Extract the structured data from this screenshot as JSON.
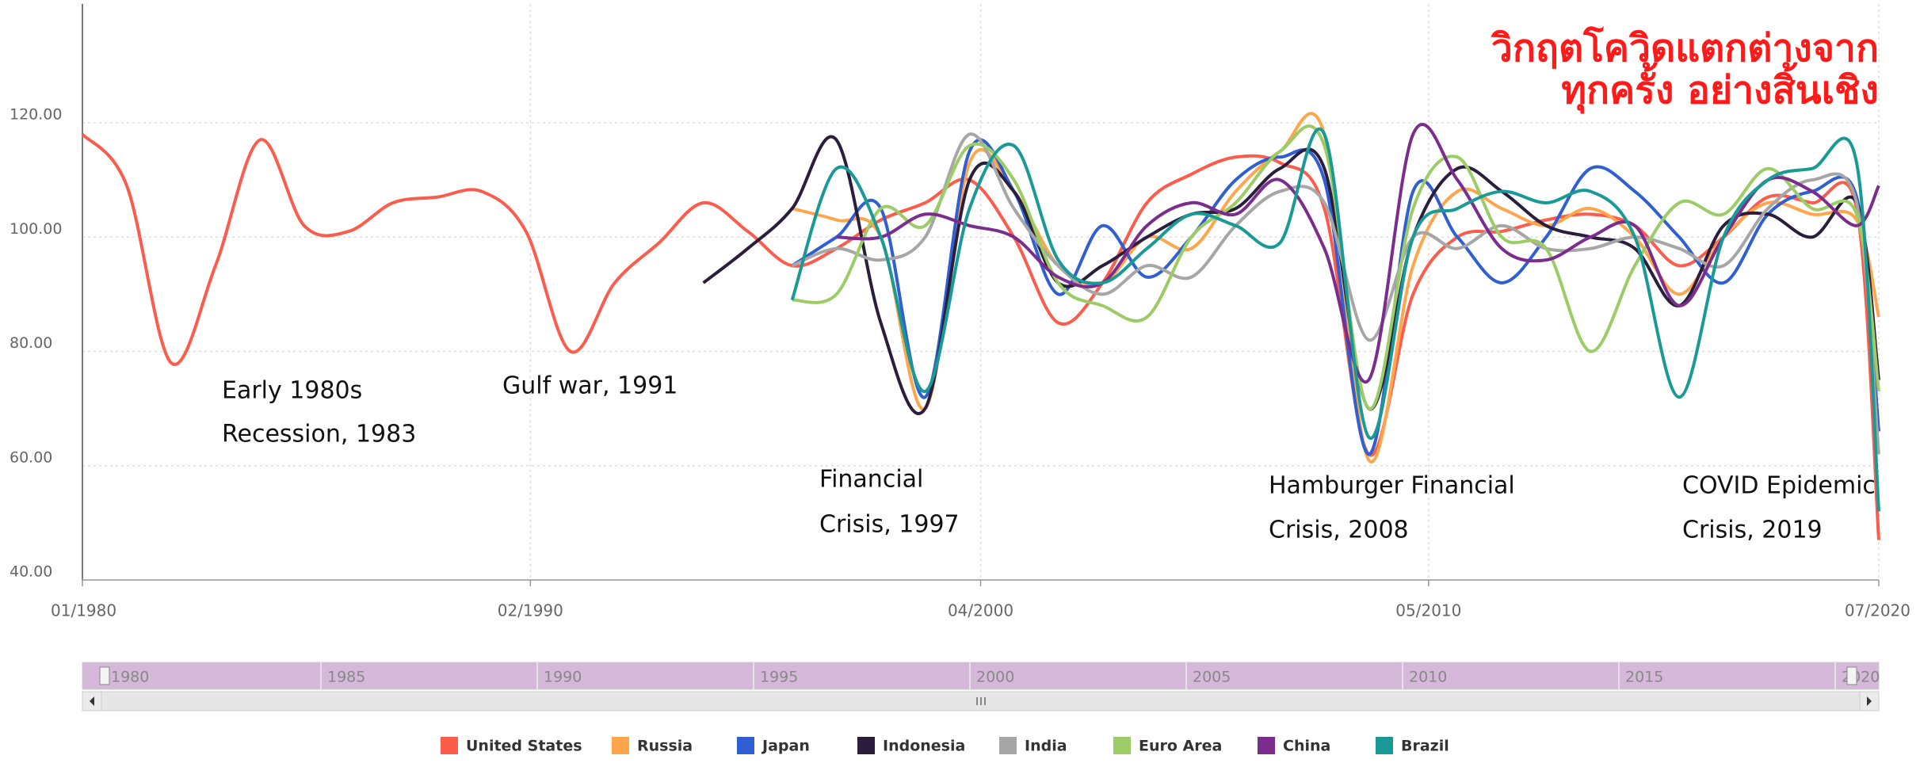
{
  "chart_data": {
    "type": "line",
    "title_lines": [
      "วิกฤตโควิดแตกต่างจาก",
      "ทุกครั้ง อย่างสิ้นเชิง"
    ],
    "annotations": [
      "Early 1980s",
      "Recession, 1983",
      "Gulf war, 1991",
      "Financial",
      "Crisis, 1997",
      "Hamburger Financial",
      "Crisis, 2008",
      "COVID Epidemic",
      "Crisis, 2019"
    ],
    "x": [
      1980,
      1981,
      1982,
      1983,
      1984,
      1985,
      1986,
      1987,
      1988,
      1989,
      1990,
      1991,
      1992,
      1993,
      1994,
      1995,
      1996,
      1997,
      1998,
      1999,
      2000,
      2001,
      2002,
      2003,
      2004,
      2005,
      2006,
      2007,
      2008,
      2009,
      2010,
      2011,
      2012,
      2013,
      2014,
      2015,
      2016,
      2017,
      2018,
      2019,
      2020,
      2020.5
    ],
    "xlim": [
      1980,
      2020.5
    ],
    "xticks": [
      {
        "value": 1980,
        "label": "01/1980"
      },
      {
        "value": 1990.1,
        "label": "02/1990"
      },
      {
        "value": 2000.25,
        "label": "04/2000"
      },
      {
        "value": 2010.35,
        "label": "05/2010"
      },
      {
        "value": 2020.5,
        "label": "07/2020"
      }
    ],
    "ylim": [
      40,
      140.8
    ],
    "yticks": [
      {
        "value": 40,
        "label": "40.00"
      },
      {
        "value": 60,
        "label": "60.00"
      },
      {
        "value": 80,
        "label": "80.00"
      },
      {
        "value": 100,
        "label": "100.00"
      },
      {
        "value": 120,
        "label": "120.00"
      }
    ],
    "grid": true,
    "series": [
      {
        "name": "United States",
        "color": "#fc5c4c",
        "values": [
          118,
          109,
          78,
          95,
          117,
          102,
          101,
          106,
          107,
          108,
          101,
          80,
          92,
          99,
          106,
          101,
          95,
          98,
          103,
          106,
          110,
          100,
          85,
          92,
          106,
          111,
          114,
          113,
          105,
          62,
          90,
          100,
          101,
          103,
          104,
          102,
          95,
          100,
          107,
          106,
          105,
          47
        ]
      },
      {
        "name": "Russia",
        "color": "#ffa64d",
        "values": [
          null,
          null,
          null,
          null,
          null,
          null,
          null,
          null,
          null,
          null,
          null,
          null,
          null,
          null,
          null,
          null,
          105,
          103,
          100,
          70,
          113,
          108,
          95,
          92,
          100,
          98,
          108,
          115,
          118,
          61,
          95,
          108,
          105,
          102,
          105,
          100,
          90,
          100,
          106,
          104,
          103,
          86
        ]
      },
      {
        "name": "Japan",
        "color": "#2f5fd0",
        "values": [
          null,
          null,
          null,
          null,
          null,
          null,
          null,
          null,
          null,
          null,
          null,
          null,
          null,
          null,
          null,
          null,
          95,
          100,
          105,
          72,
          115,
          108,
          90,
          102,
          93,
          100,
          110,
          114,
          110,
          62,
          108,
          100,
          92,
          100,
          112,
          108,
          100,
          92,
          104,
          108,
          107,
          66
        ]
      },
      {
        "name": "Indonesia",
        "color": "#2b1e3d",
        "values": [
          null,
          null,
          null,
          null,
          null,
          null,
          null,
          null,
          null,
          null,
          null,
          null,
          null,
          null,
          92,
          98,
          105,
          117,
          85,
          70,
          110,
          108,
          92,
          95,
          100,
          104,
          105,
          112,
          112,
          70,
          100,
          112,
          108,
          102,
          100,
          98,
          88,
          102,
          104,
          100,
          106,
          75
        ]
      },
      {
        "name": "India",
        "color": "#a6a6a6",
        "values": [
          null,
          null,
          null,
          null,
          null,
          null,
          null,
          null,
          null,
          null,
          null,
          null,
          null,
          null,
          null,
          null,
          95,
          98,
          96,
          100,
          118,
          105,
          95,
          90,
          95,
          93,
          102,
          108,
          106,
          82,
          100,
          98,
          102,
          98,
          98,
          100,
          98,
          95,
          105,
          110,
          106,
          62
        ]
      },
      {
        "name": "Euro Area",
        "color": "#9ccc65",
        "values": [
          null,
          null,
          null,
          null,
          null,
          null,
          null,
          null,
          null,
          null,
          null,
          null,
          null,
          null,
          null,
          null,
          89,
          90,
          105,
          102,
          116,
          110,
          92,
          88,
          86,
          100,
          106,
          115,
          116,
          70,
          105,
          114,
          100,
          98,
          80,
          95,
          106,
          104,
          112,
          105,
          104,
          73
        ]
      },
      {
        "name": "China",
        "color": "#7b2d8e",
        "values": [
          null,
          null,
          null,
          null,
          null,
          null,
          null,
          null,
          null,
          null,
          null,
          null,
          null,
          null,
          null,
          null,
          null,
          100,
          100,
          104,
          102,
          100,
          93,
          92,
          102,
          106,
          104,
          110,
          98,
          75,
          118,
          110,
          98,
          96,
          100,
          102,
          88,
          100,
          110,
          108,
          102,
          109
        ]
      },
      {
        "name": "Brazil",
        "color": "#1a9a96",
        "values": [
          null,
          null,
          null,
          null,
          null,
          null,
          null,
          null,
          null,
          null,
          null,
          null,
          null,
          null,
          null,
          null,
          89,
          112,
          100,
          73,
          105,
          116,
          96,
          92,
          98,
          104,
          102,
          99,
          118,
          65,
          100,
          105,
          108,
          106,
          108,
          100,
          72,
          100,
          110,
          112,
          113,
          52
        ]
      }
    ],
    "navigator_labels": [
      "1980",
      "1985",
      "1990",
      "1995",
      "2000",
      "2005",
      "2010",
      "2015",
      "2020"
    ],
    "navigator_color": "#d6b9da"
  }
}
